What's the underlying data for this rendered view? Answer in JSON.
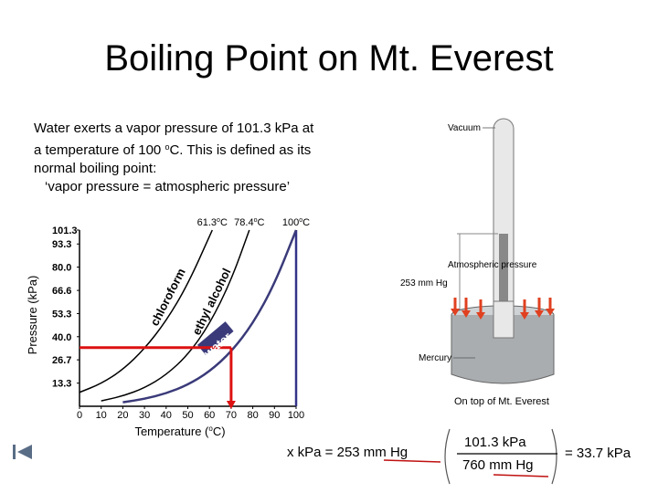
{
  "slide": {
    "title": "Boiling Point on Mt. Everest",
    "intro": {
      "line1": "Water exerts a vapor pressure of 101.3 kPa at",
      "line2_pre": "a temperature of 100 ",
      "line2_deg": "o",
      "line2_post": "C.  This is defined as its",
      "line3": "normal boiling point:",
      "line4": "‘vapor pressure  =  atmospheric pressure’"
    },
    "nav_icon": "first-slide-icon"
  },
  "chart_data": {
    "type": "line",
    "ylabel": "Pressure (kPa)",
    "xlabel_pre": "Temperature (",
    "xlabel_deg": "o",
    "xlabel_post": "C)",
    "x_ticks": [
      "0",
      "10",
      "20",
      "30",
      "40",
      "50",
      "60",
      "70",
      "80",
      "90",
      "100"
    ],
    "y_ticks": [
      "101.3",
      "93.3",
      "80.0",
      "66.6",
      "53.3",
      "40.0",
      "26.7",
      "13.3"
    ],
    "y_tick_values": [
      101.3,
      93.3,
      80.0,
      66.6,
      53.3,
      40.0,
      26.7,
      13.3
    ],
    "xlim": [
      0,
      100
    ],
    "ylim": [
      0,
      101.3
    ],
    "boiling_points": [
      {
        "label_num": "61.3",
        "label_deg": "o",
        "label_unit": "C",
        "value": 61.3
      },
      {
        "label_num": "78.4",
        "label_deg": "o",
        "label_unit": "C",
        "value": 78.4
      },
      {
        "label_num": "100",
        "label_deg": "o",
        "label_unit": "C",
        "value": 100
      }
    ],
    "series": [
      {
        "name": "chloroform",
        "points": [
          [
            0,
            8
          ],
          [
            10,
            13
          ],
          [
            20,
            21
          ],
          [
            30,
            33
          ],
          [
            40,
            49
          ],
          [
            50,
            70
          ],
          [
            61.3,
            101.3
          ]
        ]
      },
      {
        "name": "ethyl alcohol",
        "points": [
          [
            10,
            3.1
          ],
          [
            20,
            5.9
          ],
          [
            30,
            10.5
          ],
          [
            40,
            18
          ],
          [
            50,
            29.5
          ],
          [
            60,
            47
          ],
          [
            70,
            72.3
          ],
          [
            78.4,
            101.3
          ]
        ]
      },
      {
        "name": "water",
        "points": [
          [
            20,
            2.3
          ],
          [
            30,
            4.2
          ],
          [
            40,
            7.4
          ],
          [
            50,
            12.3
          ],
          [
            60,
            19.9
          ],
          [
            70,
            31.2
          ],
          [
            80,
            47.4
          ],
          [
            90,
            70.1
          ],
          [
            100,
            101.3
          ]
        ]
      }
    ],
    "highlight": {
      "pressure": 33.7,
      "temperature": 70,
      "color": "#dd1111"
    },
    "colors": {
      "curves": "#000000",
      "water_curve": "#3a3a7a",
      "frame_right": "#333388",
      "highlight": "#dd1111"
    }
  },
  "illustration": {
    "vacuum": "Vacuum",
    "atmospheric_pressure": "Atmospheric pressure",
    "mm_hg": "253 mm Hg",
    "mercury": "Mercury",
    "arrow_color": "#e04020"
  },
  "everest": {
    "caption": "On top of Mt. Everest",
    "lhs": "x kPa  =  253 mm Hg",
    "numerator": "101.3 kPa",
    "denominator": "760 mm Hg",
    "result": "= 33.7 kPa"
  }
}
